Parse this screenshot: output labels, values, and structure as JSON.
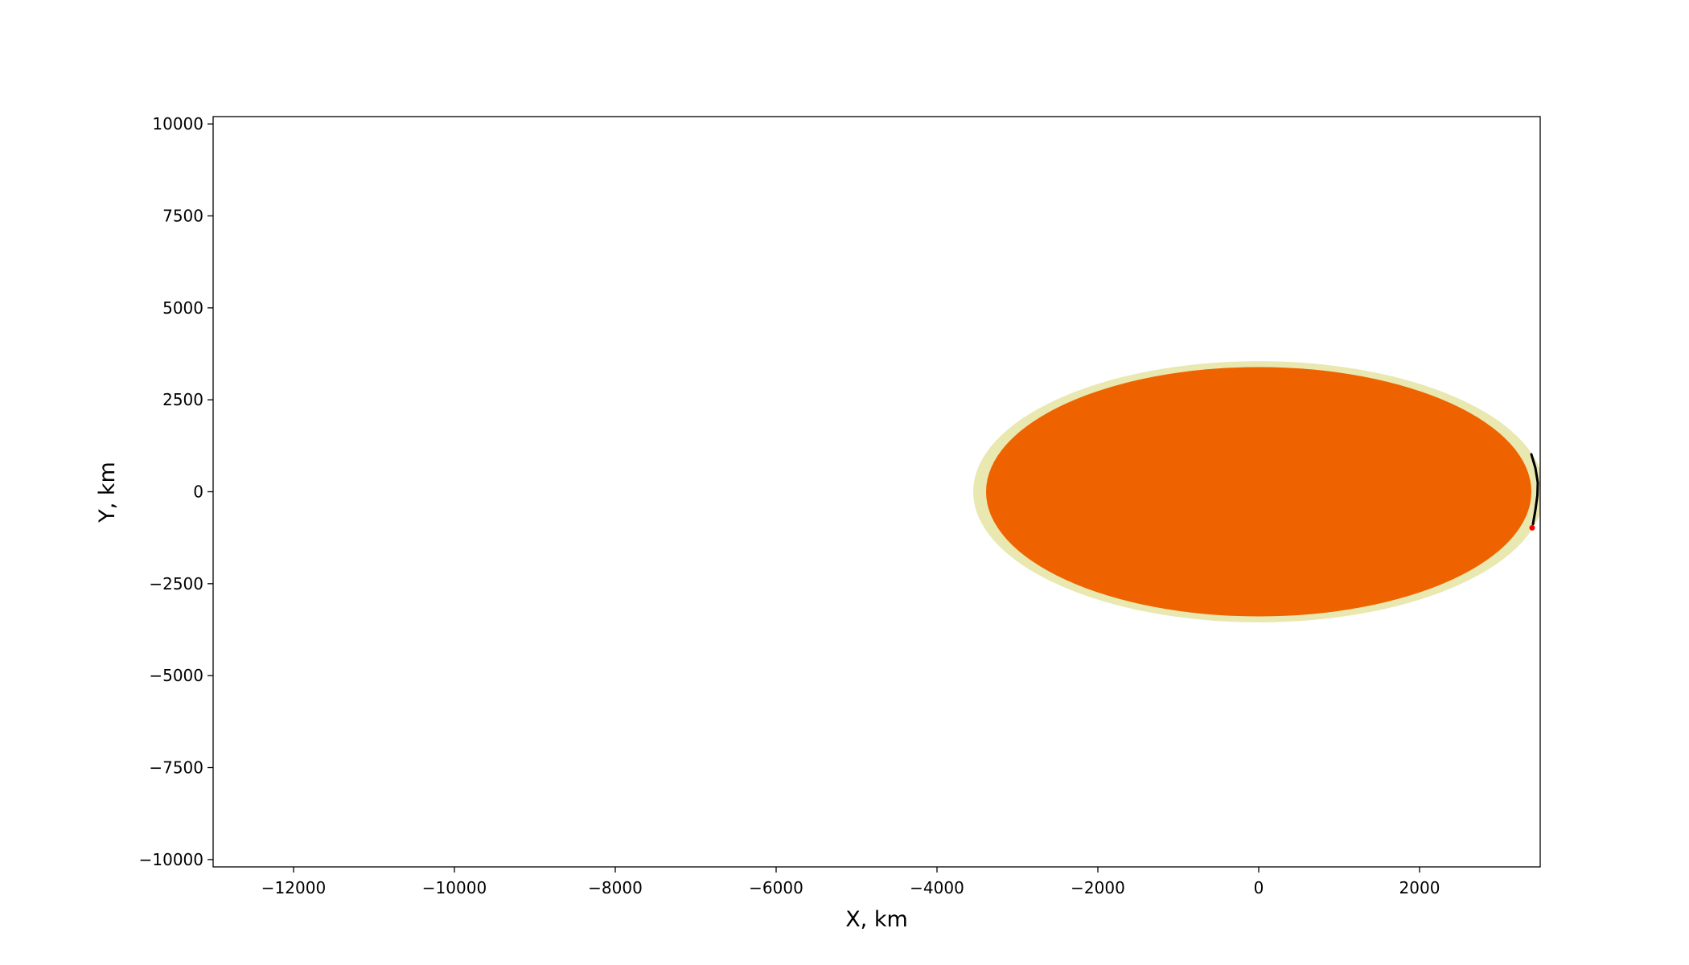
{
  "chart_data": {
    "type": "scatter",
    "title": "",
    "xlabel": "X, km",
    "ylabel": "Y, km",
    "xlim": [
      -13000,
      3500
    ],
    "ylim": [
      -10200,
      10200
    ],
    "grid": false,
    "legend": "none",
    "x_ticks": [
      -12000,
      -10000,
      -8000,
      -6000,
      -4000,
      -2000,
      0,
      2000
    ],
    "x_tick_labels": [
      "−12000",
      "−10000",
      "−8000",
      "−6000",
      "−4000",
      "−2000",
      "0",
      "2000"
    ],
    "y_ticks": [
      10000,
      7500,
      5000,
      2500,
      0,
      -2500,
      -5000,
      -7500,
      -10000
    ],
    "y_tick_labels": [
      "10000",
      "7500",
      "5000",
      "2500",
      "0",
      "−2500",
      "−5000",
      "−7500",
      "−10000"
    ],
    "bodies": [
      {
        "center": [
          0,
          0
        ],
        "radius": 3550,
        "color": "#e8e8b0"
      },
      {
        "center": [
          0,
          0
        ],
        "radius": 3390,
        "color": "#ee6300"
      }
    ],
    "trajectory": {
      "color": "#000000",
      "points": [
        [
          3390,
          1020
        ],
        [
          3440,
          650
        ],
        [
          3470,
          250
        ],
        [
          3465,
          -100
        ],
        [
          3440,
          -500
        ],
        [
          3410,
          -880
        ]
      ]
    },
    "marker": {
      "x": 3400,
      "y": -980,
      "color": "#ff0000"
    }
  }
}
